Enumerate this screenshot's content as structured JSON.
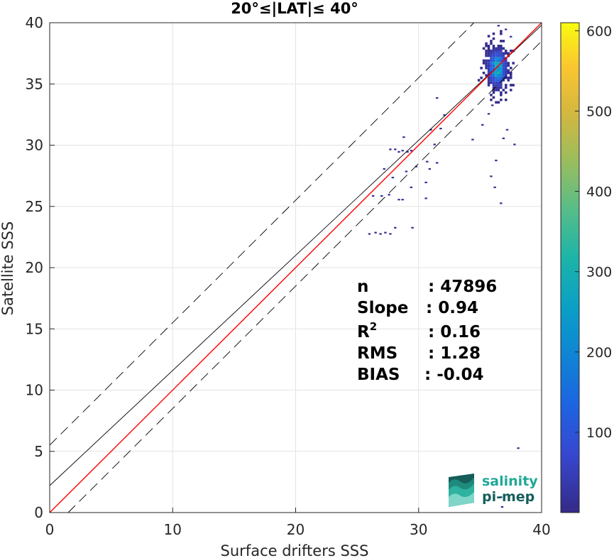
{
  "chart_data": {
    "type": "heatmap",
    "title": "20°≤|LAT|≤ 40°",
    "xlabel": "Surface drifters SSS",
    "ylabel": "Satellite SSS",
    "xlim": [
      0,
      40
    ],
    "ylim": [
      0,
      40
    ],
    "x_ticks": [
      "0",
      "10",
      "20",
      "30",
      "40"
    ],
    "y_ticks": [
      "0",
      "5",
      "10",
      "15",
      "20",
      "25",
      "30",
      "35",
      "40"
    ],
    "grid": true,
    "colorbar": {
      "range": [
        0,
        610
      ],
      "ticks": [
        "100",
        "200",
        "300",
        "400",
        "500",
        "600"
      ],
      "colormap": "parula"
    },
    "lines": [
      {
        "role": "one-to-one",
        "color": "#ff0000",
        "slope": 1,
        "intercept": 0
      },
      {
        "role": "regression fit",
        "color": "#000000",
        "slope": 0.94,
        "intercept": 2.2
      },
      {
        "role": "upper bound",
        "color": "#000000",
        "dash": true,
        "slope": 1,
        "intercept": 5.5
      },
      {
        "role": "lower bound",
        "color": "#000000",
        "dash": true,
        "slope": 1,
        "intercept": -1.5
      }
    ],
    "stats": [
      {
        "label": "n",
        "value": ": 47896"
      },
      {
        "label": "Slope",
        "value": ": 0.94"
      },
      {
        "label": "R",
        "sup": "2",
        "value": ": 0.16"
      },
      {
        "label": "RMS",
        "value": ": 1.28"
      },
      {
        "label": "BIAS",
        "value": ": -0.04"
      }
    ],
    "core": {
      "x": 36.3,
      "y": 36.2,
      "peak_count": 610
    },
    "outliers": [
      [
        25.9,
        22.7
      ],
      [
        26.4,
        22.8
      ],
      [
        26.8,
        22.7
      ],
      [
        27.2,
        22.8
      ],
      [
        27.6,
        22.7
      ],
      [
        28.0,
        23.2
      ],
      [
        29.4,
        23.2
      ],
      [
        26.2,
        25.8
      ],
      [
        26.9,
        25.8
      ],
      [
        27.5,
        25.9
      ],
      [
        28.3,
        25.5
      ],
      [
        28.6,
        25.5
      ],
      [
        27.1,
        28.0
      ],
      [
        27.8,
        27.3
      ],
      [
        28.9,
        27.8
      ],
      [
        29.3,
        26.5
      ],
      [
        30.5,
        25.6
      ],
      [
        29.7,
        28.2
      ],
      [
        27.6,
        29.6
      ],
      [
        28.0,
        29.6
      ],
      [
        28.3,
        29.4
      ],
      [
        28.6,
        29.5
      ],
      [
        29.0,
        29.4
      ],
      [
        29.3,
        29.5
      ],
      [
        28.7,
        30.6
      ],
      [
        30.6,
        28.6
      ],
      [
        30.8,
        28.0
      ],
      [
        30.5,
        26.9
      ],
      [
        31.2,
        30.0
      ],
      [
        31.4,
        28.5
      ],
      [
        30.9,
        31.2
      ],
      [
        31.7,
        31.3
      ],
      [
        32.0,
        32.4
      ],
      [
        31.4,
        33.8
      ],
      [
        34.3,
        30.4
      ],
      [
        35.1,
        31.6
      ],
      [
        35.6,
        32.5
      ],
      [
        35.9,
        33.2
      ],
      [
        36.2,
        28.7
      ],
      [
        36.8,
        30.5
      ],
      [
        37.1,
        31.2
      ],
      [
        37.7,
        30.0
      ],
      [
        35.8,
        27.4
      ],
      [
        36.1,
        26.5
      ],
      [
        36.6,
        25.2
      ],
      [
        36.6,
        1.2
      ],
      [
        36.7,
        0.4
      ],
      [
        38.0,
        5.2
      ],
      [
        36.4,
        39.7
      ],
      [
        37.0,
        39.4
      ],
      [
        37.4,
        38.8
      ]
    ]
  },
  "logo": {
    "line1": "salinity",
    "line2": "pi-mep"
  },
  "colors": {
    "fit": "#000000",
    "identity": "#ff0000",
    "logo_teal": "#1fa896",
    "logo_dark": "#155e5a"
  }
}
